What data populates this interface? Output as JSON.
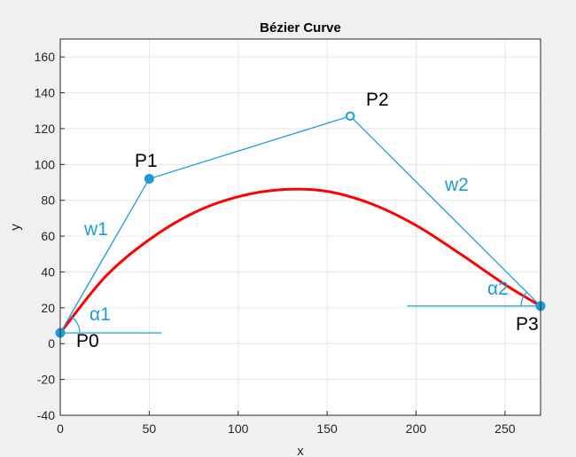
{
  "chart_data": {
    "type": "line",
    "title": "Bézier Curve",
    "xlabel": "x",
    "ylabel": "y",
    "xlim": [
      0,
      270
    ],
    "ylim": [
      -40,
      170
    ],
    "xticks": [
      0,
      50,
      100,
      150,
      200,
      250
    ],
    "yticks": [
      -40,
      -20,
      0,
      20,
      40,
      60,
      80,
      100,
      120,
      140,
      160
    ],
    "grid": true,
    "series": [
      {
        "kind": "control-polygon",
        "color": "#1f9bd7",
        "x": [
          0,
          50,
          163,
          270
        ],
        "y": [
          6,
          92,
          127,
          21
        ]
      },
      {
        "kind": "bezier-curve",
        "color": "#ff0000",
        "x": [
          0,
          25,
          50,
          75,
          100,
          125,
          150,
          175,
          200,
          225,
          250,
          270
        ],
        "y": [
          6,
          37,
          58,
          73,
          82,
          86,
          85,
          78,
          66,
          50,
          33,
          21
        ]
      }
    ],
    "reference_lines": [
      {
        "color": "#1f9bd7",
        "x": [
          0,
          57
        ],
        "y": [
          6,
          6
        ]
      },
      {
        "color": "#1f9bd7",
        "x": [
          195,
          270
        ],
        "y": [
          21,
          21
        ]
      }
    ],
    "annotations": {
      "points": [
        {
          "label": "P0",
          "x": 0,
          "y": 6,
          "marker": "filled"
        },
        {
          "label": "P1",
          "x": 50,
          "y": 92,
          "marker": "filled"
        },
        {
          "label": "P2",
          "x": 163,
          "y": 127,
          "marker": "open"
        },
        {
          "label": "P3",
          "x": 270,
          "y": 21,
          "marker": "filled"
        }
      ],
      "weights": [
        {
          "label": "w1",
          "color": "#1f9bd7"
        },
        {
          "label": "w2",
          "color": "#1f9bd7"
        }
      ],
      "angles": [
        {
          "label": "α1",
          "color": "#1f9bd7"
        },
        {
          "label": "α2",
          "color": "#1f9bd7"
        }
      ]
    }
  }
}
